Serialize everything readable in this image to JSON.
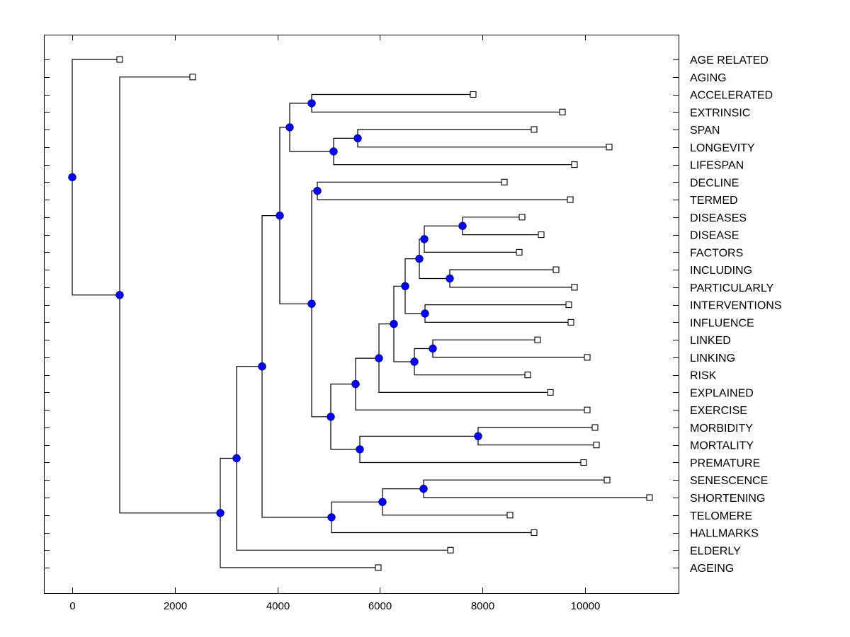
{
  "chart_data": {
    "type": "dendrogram",
    "title": "",
    "xlabel": "",
    "ylabel": "",
    "xlim": [
      -550,
      11900
    ],
    "x_ticks": [
      0,
      2000,
      4000,
      6000,
      8000,
      10000
    ],
    "x_tick_labels": [
      "0",
      "2000",
      "4000",
      "6000",
      "8000",
      "10000"
    ],
    "grid": false,
    "colors": {
      "node_fill": "#0000ff",
      "node_stroke": "#000080",
      "leaf_fill": "#ffffff",
      "line": "#000000",
      "frame": "#000000"
    },
    "leaves": [
      {
        "label": "AGE RELATED",
        "value": 925
      },
      {
        "label": "AGING",
        "value": 2348
      },
      {
        "label": "ACCELERATED",
        "value": 7818
      },
      {
        "label": "EXTRINSIC",
        "value": 9558
      },
      {
        "label": "SPAN",
        "value": 9006
      },
      {
        "label": "LONGEVITY",
        "value": 10470
      },
      {
        "label": "LIFESPAN",
        "value": 9793
      },
      {
        "label": "DECLINE",
        "value": 8425
      },
      {
        "label": "TERMED",
        "value": 9710
      },
      {
        "label": "DISEASES",
        "value": 8771
      },
      {
        "label": "DISEASE",
        "value": 9144
      },
      {
        "label": "FACTORS",
        "value": 8715
      },
      {
        "label": "INCLUDING",
        "value": 9434
      },
      {
        "label": "PARTICULARLY",
        "value": 9793
      },
      {
        "label": "INTERVENTIONS",
        "value": 9682
      },
      {
        "label": "INFLUENCE",
        "value": 9724
      },
      {
        "label": "LINKED",
        "value": 9075
      },
      {
        "label": "LINKING",
        "value": 10041
      },
      {
        "label": "RISK",
        "value": 8881
      },
      {
        "label": "EXPLAINED",
        "value": 9323
      },
      {
        "label": "EXERCISE",
        "value": 10041
      },
      {
        "label": "MORBIDITY",
        "value": 10193
      },
      {
        "label": "MORTALITY",
        "value": 10221
      },
      {
        "label": "PREMATURE",
        "value": 9972
      },
      {
        "label": "SENESCENCE",
        "value": 10428
      },
      {
        "label": "SHORTENING",
        "value": 11257
      },
      {
        "label": "TELOMERE",
        "value": 8536
      },
      {
        "label": "HALLMARKS",
        "value": 9006
      },
      {
        "label": "ELDERLY",
        "value": 7376
      },
      {
        "label": "AGEING",
        "value": 5967
      }
    ],
    "nodes": [
      {
        "id": "n1",
        "value": 4669,
        "children": [
          "L2",
          "L3"
        ]
      },
      {
        "id": "n2",
        "value": 5566,
        "children": [
          "L4",
          "L5"
        ]
      },
      {
        "id": "n3",
        "value": 5097,
        "children": [
          "n2",
          "L6"
        ]
      },
      {
        "id": "n4",
        "value": 4240,
        "children": [
          "n1",
          "n3"
        ]
      },
      {
        "id": "n5",
        "value": 4779,
        "children": [
          "L7",
          "L8"
        ]
      },
      {
        "id": "n6",
        "value": 7610,
        "children": [
          "L9",
          "L10"
        ]
      },
      {
        "id": "n7",
        "value": 6865,
        "children": [
          "n6",
          "L11"
        ]
      },
      {
        "id": "n8",
        "value": 7362,
        "children": [
          "L12",
          "L13"
        ]
      },
      {
        "id": "n9",
        "value": 6768,
        "children": [
          "n7",
          "n8"
        ]
      },
      {
        "id": "n10",
        "value": 6878,
        "children": [
          "L14",
          "L15"
        ]
      },
      {
        "id": "n11",
        "value": 6492,
        "children": [
          "n9",
          "n10"
        ]
      },
      {
        "id": "n12",
        "value": 7030,
        "children": [
          "L16",
          "L17"
        ]
      },
      {
        "id": "n13",
        "value": 6671,
        "children": [
          "n12",
          "L18"
        ]
      },
      {
        "id": "n14",
        "value": 6271,
        "children": [
          "n11",
          "n13"
        ]
      },
      {
        "id": "n15",
        "value": 5981,
        "children": [
          "n14",
          "L19"
        ]
      },
      {
        "id": "n16",
        "value": 5525,
        "children": [
          "n15",
          "L20"
        ]
      },
      {
        "id": "n17",
        "value": 7914,
        "children": [
          "L21",
          "L22"
        ]
      },
      {
        "id": "n18",
        "value": 5608,
        "children": [
          "n17",
          "L23"
        ]
      },
      {
        "id": "n19",
        "value": 5041,
        "children": [
          "n16",
          "n18"
        ]
      },
      {
        "id": "n20",
        "value": 4669,
        "children": [
          "n5",
          "n19"
        ]
      },
      {
        "id": "n21",
        "value": 4047,
        "children": [
          "n4",
          "n20"
        ]
      },
      {
        "id": "n22",
        "value": 6851,
        "children": [
          "L24",
          "L25"
        ]
      },
      {
        "id": "n23",
        "value": 6050,
        "children": [
          "n22",
          "L26"
        ]
      },
      {
        "id": "n24",
        "value": 5055,
        "children": [
          "n23",
          "L27"
        ]
      },
      {
        "id": "n25",
        "value": 3702,
        "children": [
          "n21",
          "n24"
        ]
      },
      {
        "id": "n26",
        "value": 3204,
        "children": [
          "n25",
          "L28"
        ]
      },
      {
        "id": "n27",
        "value": 2887,
        "children": [
          "n26",
          "L29"
        ]
      },
      {
        "id": "n28",
        "value": 925,
        "children": [
          "L1",
          "n27"
        ]
      },
      {
        "id": "n29",
        "value": 0,
        "children": [
          "L0",
          "n28"
        ]
      }
    ]
  }
}
